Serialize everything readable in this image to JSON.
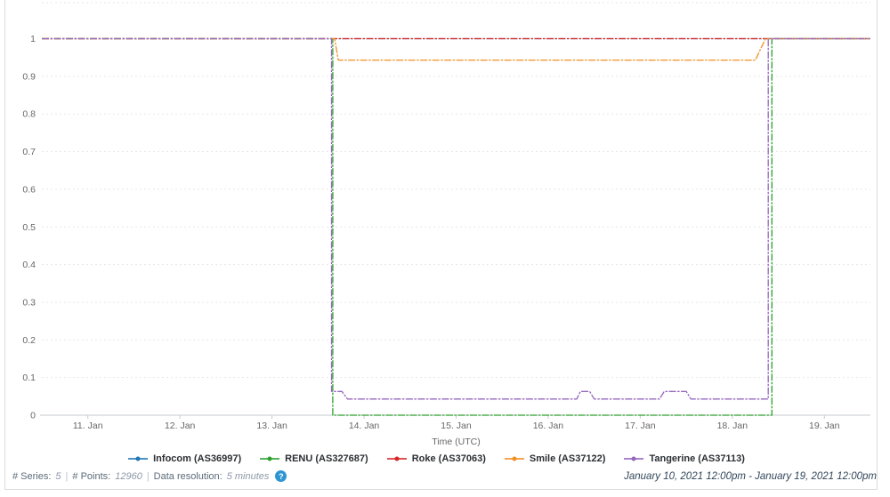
{
  "chart_data": {
    "type": "line",
    "title": "",
    "xlabel": "Time (UTC)",
    "ylabel": "",
    "x_unit": "day of January 2021",
    "xlim": [
      10.5,
      19.5
    ],
    "ylim": [
      0,
      1
    ],
    "grid": "dashed horizontal gridlines every 0.1, plot-top dashed boundary",
    "legend_position": "bottom-center",
    "axis_color": "#c6cacf",
    "grid_color": "#e7e7e7",
    "tick_text_color": "#666666",
    "yticks": [
      {
        "v": 0,
        "label": "0"
      },
      {
        "v": 0.1,
        "label": "0.1"
      },
      {
        "v": 0.2,
        "label": "0.2"
      },
      {
        "v": 0.3,
        "label": "0.3"
      },
      {
        "v": 0.4,
        "label": "0.4"
      },
      {
        "v": 0.5,
        "label": "0.5"
      },
      {
        "v": 0.6,
        "label": "0.6"
      },
      {
        "v": 0.7,
        "label": "0.7"
      },
      {
        "v": 0.8,
        "label": "0.8"
      },
      {
        "v": 0.9,
        "label": "0.9"
      },
      {
        "v": 1,
        "label": "1"
      }
    ],
    "xticks": [
      {
        "v": 11,
        "label": "11. Jan"
      },
      {
        "v": 12,
        "label": "12. Jan"
      },
      {
        "v": 13,
        "label": "13. Jan"
      },
      {
        "v": 14,
        "label": "14. Jan"
      },
      {
        "v": 15,
        "label": "15. Jan"
      },
      {
        "v": 16,
        "label": "16. Jan"
      },
      {
        "v": 17,
        "label": "17. Jan"
      },
      {
        "v": 18,
        "label": "18. Jan"
      },
      {
        "v": 19,
        "label": "19. Jan"
      }
    ],
    "series": [
      {
        "name": "Infocom (AS36997)",
        "color": "#1f77b4",
        "points": [
          [
            10.5,
            1
          ],
          [
            19.5,
            1
          ]
        ]
      },
      {
        "name": "RENU (AS327687)",
        "color": "#2ca02c",
        "points": [
          [
            10.5,
            1
          ],
          [
            13.66,
            1
          ],
          [
            13.66,
            0
          ],
          [
            18.43,
            0
          ],
          [
            18.43,
            1
          ],
          [
            19.5,
            1
          ]
        ]
      },
      {
        "name": "Roke (AS37063)",
        "color": "#d62728",
        "points": [
          [
            10.5,
            1
          ],
          [
            19.5,
            1
          ]
        ]
      },
      {
        "name": "Smile (AS37122)",
        "color": "#f28f24",
        "points": [
          [
            10.5,
            1
          ],
          [
            13.68,
            1
          ],
          [
            13.72,
            0.943
          ],
          [
            18.25,
            0.943
          ],
          [
            18.36,
            1
          ],
          [
            19.5,
            1
          ]
        ]
      },
      {
        "name": "Tangerine (AS37113)",
        "color": "#9467bd",
        "points": [
          [
            10.5,
            1
          ],
          [
            13.647,
            1
          ],
          [
            13.647,
            0.063
          ],
          [
            13.76,
            0.063
          ],
          [
            13.82,
            0.043
          ],
          [
            16.31,
            0.043
          ],
          [
            16.35,
            0.063
          ],
          [
            16.45,
            0.063
          ],
          [
            16.5,
            0.043
          ],
          [
            17.21,
            0.043
          ],
          [
            17.26,
            0.063
          ],
          [
            17.5,
            0.063
          ],
          [
            17.55,
            0.043
          ],
          [
            18.39,
            0.043
          ],
          [
            18.39,
            1
          ],
          [
            19.5,
            1
          ]
        ]
      }
    ]
  },
  "footer": {
    "stats": {
      "series_label": "# Series:",
      "series_value": "5",
      "points_label": "# Points:",
      "points_value": "12960",
      "resolution_label": "Data resolution:",
      "resolution_value": "5 minutes",
      "separator": "|"
    },
    "date_range": "January 10, 2021 12:00pm - January 19, 2021 12:00pm"
  },
  "icons": {
    "help": "?"
  }
}
